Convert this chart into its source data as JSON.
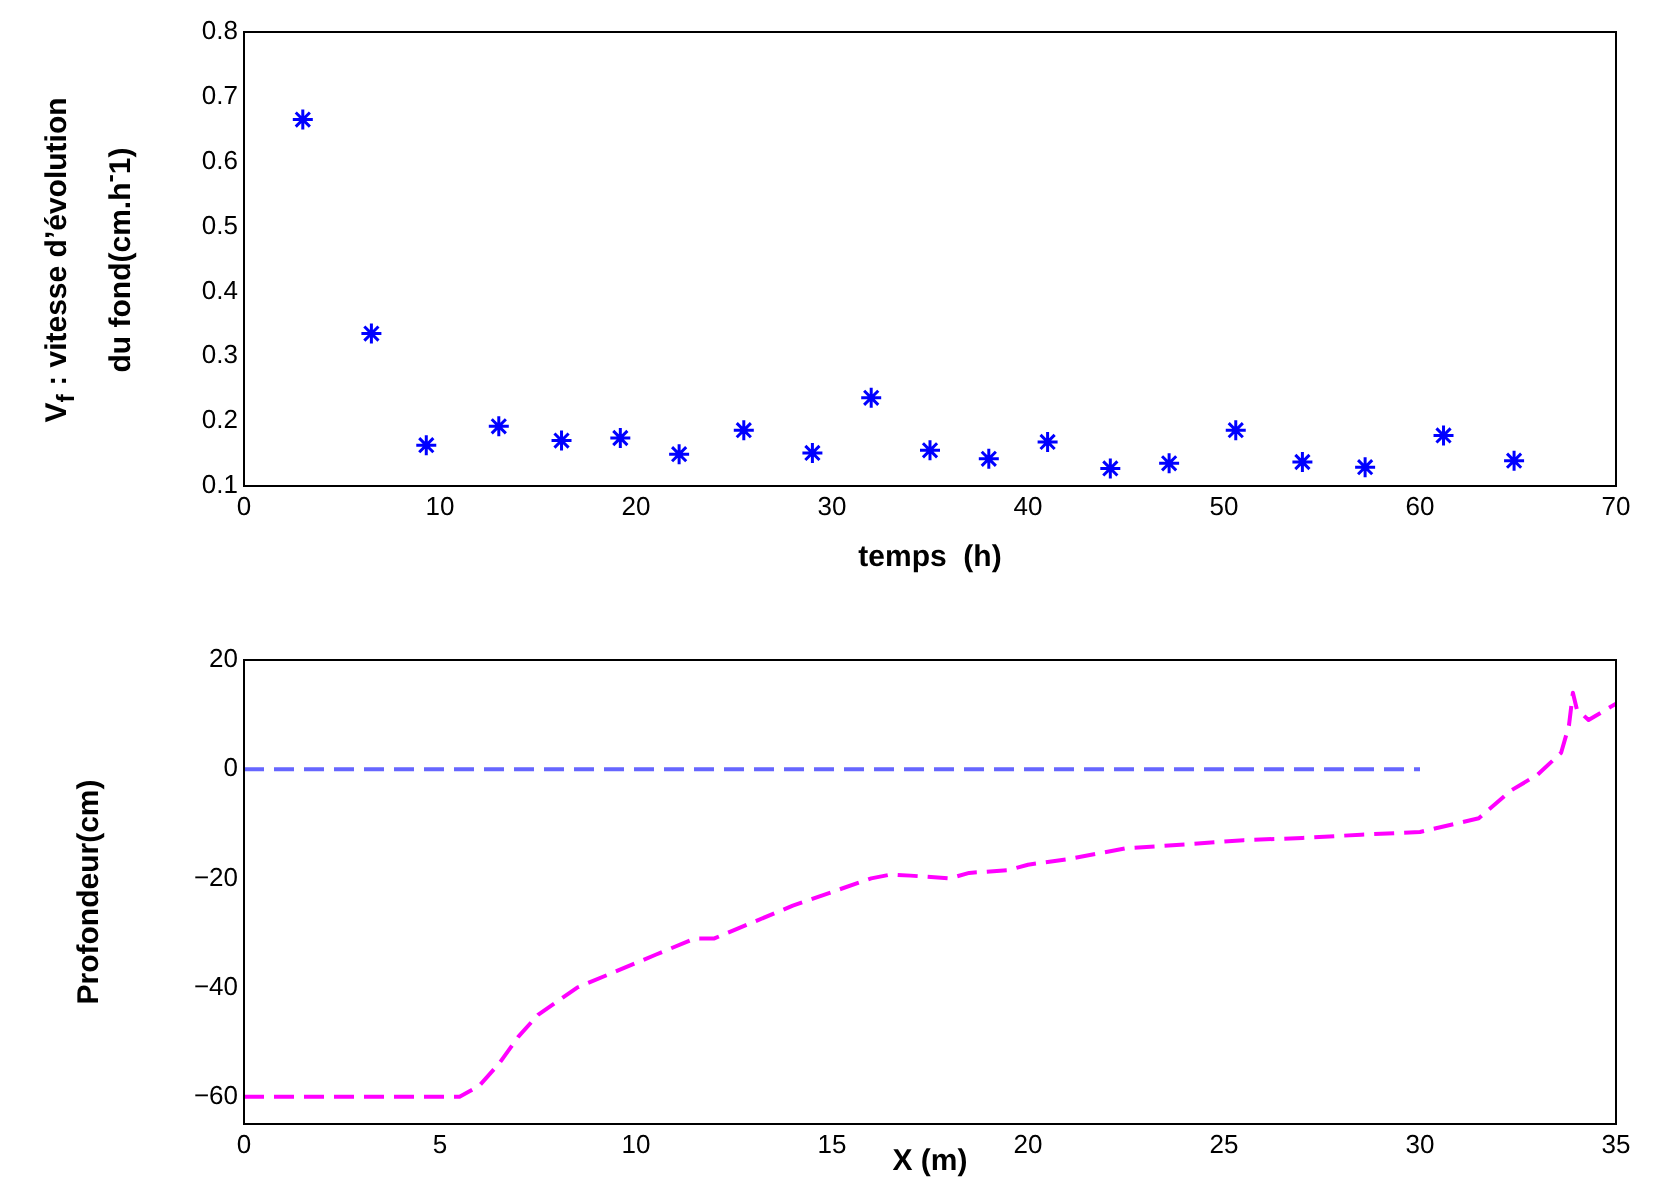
{
  "chart_data": [
    {
      "type": "scatter",
      "xlabel": "temps  (h)",
      "ylabel": "V$_{f}$ : vitesse d’évolution\ndu fond(cm.h$^{-}$1)",
      "marker": "cross",
      "grid": false,
      "xlim": [
        0,
        70
      ],
      "xticks": [
        0,
        10,
        20,
        30,
        40,
        50,
        60,
        70
      ],
      "ylim": [
        0.1,
        0.8
      ],
      "yticks": [
        0.1,
        0.2,
        0.3,
        0.4,
        0.5,
        0.6,
        0.7,
        0.8
      ],
      "series": [
        {
          "color": "#0000ff",
          "x": [
            3,
            6.5,
            9.3,
            13,
            16.2,
            19.2,
            22.2,
            25.5,
            29,
            32,
            35,
            38,
            41,
            44.2,
            47.2,
            50.6,
            54,
            57.2,
            61.2,
            64.8
          ],
          "values": [
            0.665,
            0.335,
            0.163,
            0.192,
            0.17,
            0.174,
            0.149,
            0.186,
            0.151,
            0.236,
            0.155,
            0.142,
            0.168,
            0.127,
            0.135,
            0.186,
            0.137,
            0.129,
            0.178,
            0.139
          ]
        }
      ]
    },
    {
      "type": "line",
      "xlabel": "X (m)",
      "ylabel": "Profondeur(cm)",
      "marker": "none",
      "grid": false,
      "xlim": [
        0,
        35
      ],
      "xticks": [
        0,
        5,
        10,
        15,
        20,
        25,
        30,
        35
      ],
      "ylim": [
        -65,
        20
      ],
      "yticks": [
        -60,
        -40,
        -20,
        0,
        20
      ],
      "series": [
        {
          "color": "#6666ff",
          "line_style": "dashed",
          "x": [
            0,
            30
          ],
          "values": [
            0,
            0
          ]
        },
        {
          "color": "#ff00ff",
          "line_style": "dashed",
          "x": [
            0,
            5.5,
            6,
            6.5,
            7,
            7.5,
            8.5,
            9.5,
            10.5,
            11.5,
            12,
            13,
            14,
            15,
            16,
            16.5,
            17,
            18,
            18.5,
            19.5,
            20,
            21,
            22.5,
            24,
            25.5,
            27,
            28.5,
            30,
            31.5,
            32.3,
            33,
            33.6,
            33.8,
            33.9,
            34,
            34.3,
            35
          ],
          "values": [
            -60,
            -60,
            -58,
            -54,
            -49,
            -45,
            -40,
            -37,
            -34,
            -31,
            -31,
            -28,
            -25,
            -22.5,
            -20,
            -19.3,
            -19.5,
            -20,
            -19,
            -18.5,
            -17.5,
            -16.5,
            -14.5,
            -13.8,
            -13,
            -12.6,
            -12,
            -11.5,
            -9,
            -4,
            -1,
            3,
            8,
            14,
            11,
            9,
            12
          ]
        }
      ]
    }
  ]
}
